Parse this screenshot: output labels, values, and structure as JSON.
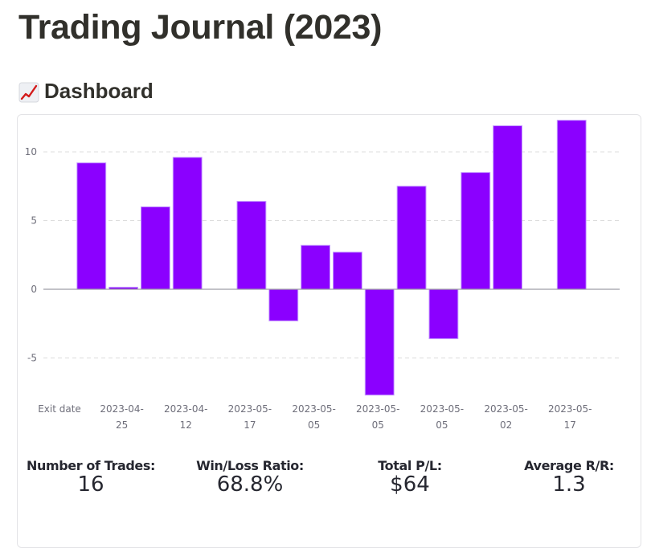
{
  "page": {
    "title": "Trading Journal (2023)",
    "dashboard_icon": "chart-increasing-emoji",
    "dashboard_emoji": "📈",
    "dashboard_label": "Dashboard"
  },
  "colors": {
    "bar": "#8b00ff",
    "bar_edge": "#c59bff",
    "grid": "#dcdcdc",
    "axis": "#9e9ea6",
    "text": "#262730"
  },
  "chart_data": {
    "type": "bar",
    "title": "",
    "xlabel": "Exit date",
    "ylabel": "",
    "ylim": [
      -8.5,
      12.5
    ],
    "yticks": [
      -5,
      0,
      5,
      10
    ],
    "grid": true,
    "legend": "none",
    "categories": [
      "",
      "2023-04-25",
      "",
      "2023-04-12",
      "",
      "2023-05-17",
      "",
      "2023-05-05",
      "",
      "2023-05-05",
      "",
      "2023-05-05",
      "",
      "2023-05-02",
      "",
      "2023-05-17"
    ],
    "visible_tick_labels": [
      "2023-04-25",
      "2023-04-12",
      "2023-05-17",
      "2023-05-05",
      "2023-05-05",
      "2023-05-05",
      "2023-05-02",
      "2023-05-17"
    ],
    "values": [
      9.2,
      0.15,
      6.0,
      9.6,
      0,
      6.4,
      -2.3,
      3.2,
      2.7,
      -7.7,
      7.5,
      -3.6,
      8.5,
      11.9,
      0,
      12.3
    ]
  },
  "metrics": [
    {
      "label": "Number of Trades:",
      "value": "16"
    },
    {
      "label": "Win/Loss Ratio:",
      "value": "68.8%"
    },
    {
      "label": "Total P/L:",
      "value": "$64"
    },
    {
      "label": "Average R/R:",
      "value": "1.3"
    }
  ]
}
